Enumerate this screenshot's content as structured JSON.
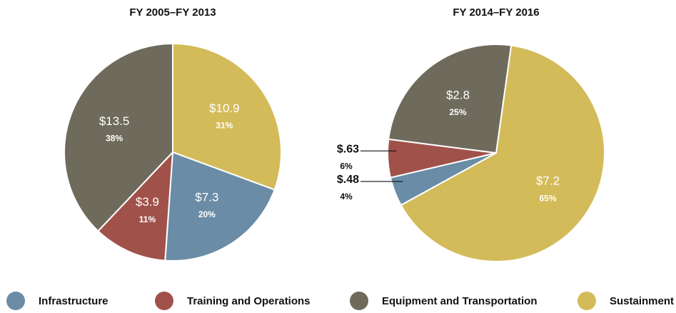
{
  "chart_data": [
    {
      "type": "pie",
      "title": "FY 2005–FY 2013",
      "categories": [
        "Infrastructure",
        "Training and Operations",
        "Equipment and Transportation",
        "Sustainment"
      ],
      "colors": [
        "#6a8ca6",
        "#a0524a",
        "#6e6b5c",
        "#d4bb5a"
      ],
      "values": [
        7.3,
        3.9,
        13.5,
        10.9
      ],
      "value_labels": [
        "$7.3",
        "$3.9",
        "$13.5",
        "$10.9"
      ],
      "percents": [
        20,
        11,
        38,
        31
      ],
      "percent_labels": [
        "20%",
        "11%",
        "38%",
        "31%"
      ]
    },
    {
      "type": "pie",
      "title": "FY 2014–FY 2016",
      "categories": [
        "Infrastructure",
        "Training and Operations",
        "Equipment and Transportation",
        "Sustainment"
      ],
      "colors": [
        "#6a8ca6",
        "#a0524a",
        "#6e6b5c",
        "#d4bb5a"
      ],
      "values": [
        0.48,
        0.63,
        2.8,
        7.2
      ],
      "value_labels": [
        "$.48",
        "$.63",
        "$2.8",
        "$7.2"
      ],
      "percents": [
        4,
        6,
        25,
        65
      ],
      "percent_labels": [
        "4%",
        "6%",
        "25%",
        "65%"
      ]
    }
  ]
}
